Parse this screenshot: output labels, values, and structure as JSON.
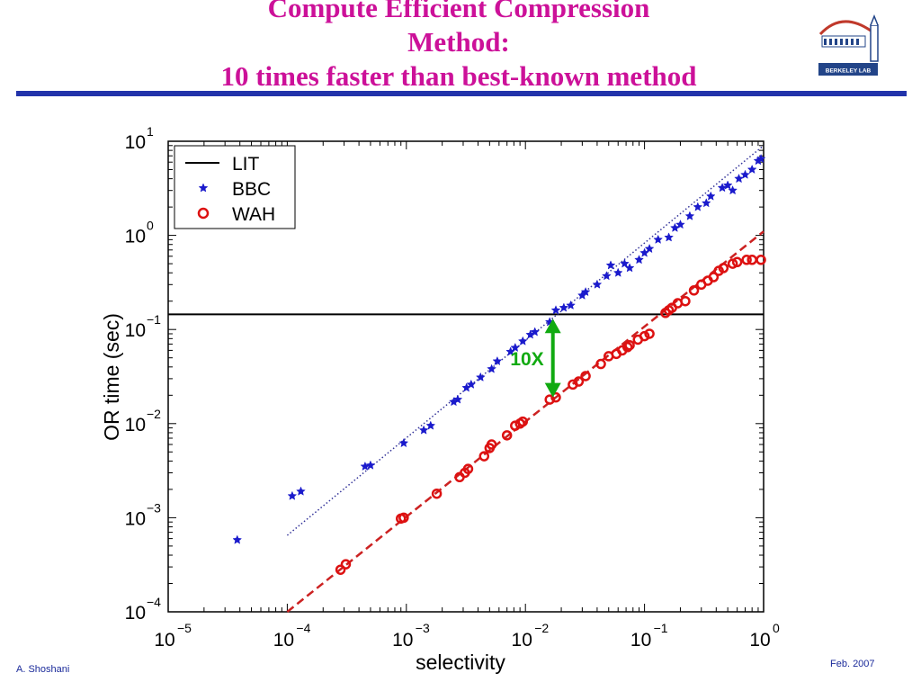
{
  "slide": {
    "title_lines": [
      "Compute Efficient Compression",
      "Method:",
      "10 times faster than best-known method"
    ],
    "logo_text": "BERKELEY LAB",
    "footer_left": "A. Shoshani",
    "footer_right": "Feb. 2007",
    "colors": {
      "title": "#cc1199",
      "rule": "#2233aa",
      "footer": "#1a2a9a"
    }
  },
  "chart_data": {
    "type": "scatter",
    "xscale": "log",
    "yscale": "log",
    "xlim": [
      1e-05,
      1
    ],
    "ylim": [
      0.0001,
      10
    ],
    "xlabel": "selectivity",
    "ylabel": "OR time (sec)",
    "x_ticks": [
      {
        "base": "10",
        "exp": "−5",
        "value": 1e-05
      },
      {
        "base": "10",
        "exp": "−4",
        "value": 0.0001
      },
      {
        "base": "10",
        "exp": "−3",
        "value": 0.001
      },
      {
        "base": "10",
        "exp": "−2",
        "value": 0.01
      },
      {
        "base": "10",
        "exp": "−1",
        "value": 0.1
      },
      {
        "base": "10",
        "exp": "0",
        "value": 1
      }
    ],
    "y_ticks": [
      {
        "base": "10",
        "exp": "−4",
        "value": 0.0001
      },
      {
        "base": "10",
        "exp": "−3",
        "value": 0.001
      },
      {
        "base": "10",
        "exp": "−2",
        "value": 0.01
      },
      {
        "base": "10",
        "exp": "−1",
        "value": 0.1
      },
      {
        "base": "10",
        "exp": "0",
        "value": 1
      },
      {
        "base": "10",
        "exp": "1",
        "value": 10
      }
    ],
    "legend": {
      "position": "top-left",
      "items": [
        {
          "label": "LIT",
          "style": "line",
          "color": "#000000"
        },
        {
          "label": "BBC",
          "style": "star",
          "color": "#1a1acc"
        },
        {
          "label": "WAH",
          "style": "circle",
          "color": "#dd1111"
        }
      ]
    },
    "series": [
      {
        "name": "LIT",
        "style": "hline",
        "color": "#000000",
        "x": [
          1e-05,
          1
        ],
        "y": [
          0.145,
          0.145
        ]
      },
      {
        "name": "BBC",
        "style": "star",
        "color": "#1a1acc",
        "x": [
          3.8e-05,
          0.00011,
          0.00013,
          0.00045,
          0.0005,
          0.00095,
          0.0014,
          0.0016,
          0.0025,
          0.0027,
          0.0032,
          0.0035,
          0.0042,
          0.0052,
          0.0058,
          0.0075,
          0.0082,
          0.0095,
          0.011,
          0.012,
          0.016,
          0.018,
          0.021,
          0.024,
          0.03,
          0.032,
          0.04,
          0.048,
          0.052,
          0.06,
          0.068,
          0.075,
          0.09,
          0.1,
          0.11,
          0.13,
          0.16,
          0.18,
          0.2,
          0.24,
          0.28,
          0.33,
          0.36,
          0.45,
          0.5,
          0.55,
          0.62,
          0.7,
          0.8,
          0.9,
          0.95
        ],
        "y": [
          0.00058,
          0.0017,
          0.0019,
          0.0035,
          0.0036,
          0.0062,
          0.0085,
          0.0095,
          0.017,
          0.018,
          0.024,
          0.026,
          0.031,
          0.038,
          0.046,
          0.058,
          0.064,
          0.075,
          0.088,
          0.094,
          0.12,
          0.16,
          0.17,
          0.18,
          0.23,
          0.25,
          0.3,
          0.37,
          0.48,
          0.4,
          0.5,
          0.45,
          0.55,
          0.65,
          0.72,
          0.9,
          0.95,
          1.2,
          1.3,
          1.6,
          2.0,
          2.2,
          2.6,
          3.2,
          3.4,
          3.0,
          4.0,
          4.4,
          5.0,
          6.2,
          6.5
        ]
      },
      {
        "name": "WAH",
        "style": "circle",
        "color": "#dd1111",
        "x": [
          0.00028,
          0.00031,
          0.0009,
          0.00095,
          0.0018,
          0.0028,
          0.0031,
          0.0033,
          0.0045,
          0.005,
          0.0052,
          0.007,
          0.0082,
          0.009,
          0.0095,
          0.016,
          0.018,
          0.025,
          0.028,
          0.032,
          0.043,
          0.05,
          0.058,
          0.065,
          0.072,
          0.075,
          0.088,
          0.1,
          0.11,
          0.15,
          0.16,
          0.17,
          0.19,
          0.22,
          0.26,
          0.3,
          0.34,
          0.38,
          0.42,
          0.46,
          0.55,
          0.6,
          0.72,
          0.8,
          0.95
        ],
        "y": [
          0.00028,
          0.00032,
          0.00098,
          0.001,
          0.0018,
          0.0027,
          0.003,
          0.0033,
          0.0045,
          0.0055,
          0.006,
          0.0075,
          0.0095,
          0.01,
          0.0105,
          0.018,
          0.019,
          0.026,
          0.028,
          0.032,
          0.043,
          0.052,
          0.055,
          0.06,
          0.065,
          0.068,
          0.078,
          0.085,
          0.09,
          0.15,
          0.16,
          0.17,
          0.19,
          0.2,
          0.26,
          0.3,
          0.33,
          0.36,
          0.42,
          0.45,
          0.5,
          0.52,
          0.55,
          0.55,
          0.55
        ]
      },
      {
        "name": "BBC fit",
        "style": "dotted",
        "color": "#333399",
        "x": [
          0.0001,
          1
        ],
        "y": [
          0.00065,
          9.0
        ]
      },
      {
        "name": "WAH fit",
        "style": "dashed",
        "color": "#cc2222",
        "x": [
          0.0001,
          1
        ],
        "y": [
          0.0001,
          1.1
        ]
      }
    ],
    "annotation": {
      "text": "10X",
      "color": "#11aa11",
      "arrow_x": 0.017,
      "arrow_y_top": 0.13,
      "arrow_y_bottom": 0.019
    }
  }
}
